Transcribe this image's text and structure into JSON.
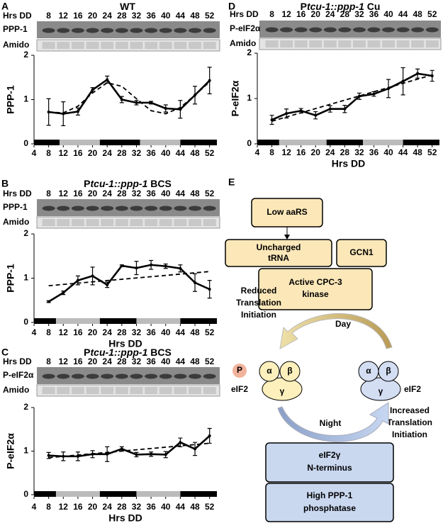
{
  "chart_data": [
    {
      "type": "line",
      "panel": "A",
      "title": [
        {
          "text": "WT",
          "italic": false
        }
      ],
      "lane_header": "Hrs DD",
      "lanes": [
        8,
        12,
        16,
        20,
        24,
        28,
        32,
        36,
        40,
        44,
        48,
        52
      ],
      "blots": [
        "PPP-1",
        "Amido"
      ],
      "ylabel": "PPP-1",
      "xlim": [
        4,
        54
      ],
      "xticks": [
        4,
        8,
        12,
        16,
        20,
        24,
        28,
        32,
        36,
        40,
        44,
        48,
        52
      ],
      "ylim": [
        0,
        2
      ],
      "yticks": [
        0,
        1,
        2
      ],
      "light_dark_bar": [
        {
          "start": 4,
          "end": 11,
          "color": "#000"
        },
        {
          "start": 11,
          "end": 22,
          "color": "#bbb"
        },
        {
          "start": 22,
          "end": 33,
          "color": "#000"
        },
        {
          "start": 33,
          "end": 44,
          "color": "#bbb"
        },
        {
          "start": 44,
          "end": 54,
          "color": "#000"
        }
      ],
      "series": [
        {
          "color": "#000",
          "dash": false,
          "x": [
            8,
            12,
            16,
            20,
            24,
            28,
            32,
            36,
            40,
            44,
            48,
            52
          ],
          "values": [
            0.72,
            0.68,
            0.73,
            1.22,
            1.45,
            1.0,
            0.93,
            0.93,
            0.8,
            0.78,
            1.1,
            1.43
          ],
          "errors": [
            0.3,
            0.27,
            0.08,
            0.05,
            0.08,
            0.07,
            0.05,
            0.03,
            0.08,
            0.2,
            0.2,
            0.3
          ]
        },
        {
          "color": "#000",
          "dash": true,
          "x": [
            8,
            12,
            16,
            20,
            24,
            28,
            32,
            36,
            40,
            44,
            48,
            52
          ],
          "values": [
            0.72,
            0.7,
            0.85,
            1.15,
            1.38,
            1.3,
            1.02,
            0.75,
            0.68,
            0.82,
            1.1,
            1.4
          ]
        }
      ]
    },
    {
      "type": "line",
      "panel": "B",
      "title": [
        {
          "text": "P",
          "italic": false
        },
        {
          "text": "tcu-1::ppp-1",
          "italic": true
        },
        {
          "text": " BCS",
          "italic": false
        }
      ],
      "lane_header": "Hrs DD",
      "lanes": [
        8,
        12,
        16,
        20,
        24,
        28,
        32,
        36,
        40,
        44,
        48,
        52
      ],
      "blots": [
        "PPP-1",
        "Amido"
      ],
      "ylabel": "PPP-1",
      "xlabel": "Hrs DD",
      "xlim": [
        4,
        54
      ],
      "xticks": [
        4,
        8,
        12,
        16,
        20,
        24,
        28,
        32,
        36,
        40,
        44,
        48,
        52
      ],
      "ylim": [
        0,
        2
      ],
      "yticks": [
        0,
        1,
        2
      ],
      "light_dark_bar": [
        {
          "start": 4,
          "end": 10,
          "color": "#000"
        },
        {
          "start": 10,
          "end": 22,
          "color": "#bbb"
        },
        {
          "start": 22,
          "end": 32,
          "color": "#000"
        },
        {
          "start": 32,
          "end": 44,
          "color": "#bbb"
        },
        {
          "start": 44,
          "end": 54,
          "color": "#000"
        }
      ],
      "series": [
        {
          "color": "#000",
          "dash": false,
          "x": [
            8,
            12,
            16,
            20,
            24,
            28,
            32,
            36,
            40,
            44,
            48,
            52
          ],
          "values": [
            0.47,
            0.67,
            0.95,
            1.05,
            0.85,
            1.28,
            1.23,
            1.3,
            1.27,
            1.22,
            0.9,
            0.75
          ],
          "errors": [
            0.02,
            0.04,
            0.1,
            0.2,
            0.06,
            0.02,
            0.15,
            0.1,
            0.05,
            0.08,
            0.2,
            0.2
          ]
        },
        {
          "color": "#000",
          "dash": true,
          "x": [
            8,
            52
          ],
          "values": [
            0.83,
            1.15
          ]
        }
      ]
    },
    {
      "type": "line",
      "panel": "C",
      "title": [
        {
          "text": "P",
          "italic": false
        },
        {
          "text": "tcu-1::ppp-1",
          "italic": true
        },
        {
          "text": " BCS",
          "italic": false
        }
      ],
      "lane_header": "Hrs DD",
      "lanes": [
        8,
        12,
        16,
        20,
        24,
        28,
        32,
        36,
        40,
        44,
        48,
        52
      ],
      "blots": [
        "P-eIF2α",
        "Amido"
      ],
      "ylabel": "P-eIF2α",
      "xlabel": "Hrs DD",
      "xlim": [
        4,
        54
      ],
      "xticks": [
        4,
        8,
        12,
        16,
        20,
        24,
        28,
        32,
        36,
        40,
        44,
        48,
        52
      ],
      "ylim": [
        0,
        2
      ],
      "yticks": [
        0,
        1,
        2
      ],
      "light_dark_bar": [
        {
          "start": 4,
          "end": 10,
          "color": "#000"
        },
        {
          "start": 10,
          "end": 22,
          "color": "#bbb"
        },
        {
          "start": 22,
          "end": 32,
          "color": "#000"
        },
        {
          "start": 32,
          "end": 44,
          "color": "#bbb"
        },
        {
          "start": 44,
          "end": 54,
          "color": "#000"
        }
      ],
      "series": [
        {
          "color": "#000",
          "dash": false,
          "x": [
            8,
            12,
            16,
            20,
            24,
            28,
            32,
            36,
            40,
            44,
            48,
            52
          ],
          "values": [
            0.9,
            0.88,
            0.88,
            0.93,
            0.93,
            1.05,
            0.92,
            0.93,
            0.92,
            1.2,
            1.05,
            1.35
          ],
          "errors": [
            0.07,
            0.1,
            0.1,
            0.08,
            0.17,
            0.05,
            0.05,
            0.05,
            0.07,
            0.1,
            0.15,
            0.17
          ]
        },
        {
          "color": "#000",
          "dash": true,
          "x": [
            8,
            52
          ],
          "values": [
            0.85,
            1.18
          ]
        }
      ]
    },
    {
      "type": "line",
      "panel": "D",
      "title": [
        {
          "text": "P",
          "italic": false
        },
        {
          "text": "tcu-1::ppp-1",
          "italic": true
        },
        {
          "text": " Cu",
          "italic": false
        }
      ],
      "lane_header": "Hrs DD",
      "lanes": [
        8,
        12,
        16,
        20,
        24,
        28,
        32,
        36,
        40,
        44,
        48,
        52
      ],
      "blots": [
        "P-eIF2α",
        "Amido"
      ],
      "ylabel": "P-eIF2α",
      "xlabel": "Hrs DD",
      "xlim": [
        4,
        54
      ],
      "xticks": [
        4,
        8,
        12,
        16,
        20,
        24,
        28,
        32,
        36,
        40,
        44,
        48,
        52
      ],
      "ylim": [
        0,
        2
      ],
      "yticks": [
        0,
        1,
        2
      ],
      "light_dark_bar": [
        {
          "start": 4,
          "end": 10,
          "color": "#000"
        },
        {
          "start": 10,
          "end": 23,
          "color": "#bbb"
        },
        {
          "start": 23,
          "end": 33,
          "color": "#000"
        },
        {
          "start": 33,
          "end": 44,
          "color": "#bbb"
        },
        {
          "start": 44,
          "end": 54,
          "color": "#000"
        }
      ],
      "series": [
        {
          "color": "#000",
          "dash": false,
          "x": [
            8,
            12,
            16,
            20,
            24,
            28,
            32,
            36,
            40,
            44,
            48,
            52
          ],
          "values": [
            0.53,
            0.67,
            0.73,
            0.63,
            0.77,
            0.77,
            1.05,
            1.1,
            1.22,
            1.38,
            1.55,
            1.5
          ],
          "errors": [
            0.1,
            0.1,
            0.05,
            0.08,
            0.07,
            0.08,
            0.07,
            0.05,
            0.2,
            0.3,
            0.1,
            0.12
          ]
        },
        {
          "color": "#000",
          "dash": true,
          "x": [
            8,
            52
          ],
          "values": [
            0.5,
            1.52
          ]
        }
      ]
    }
  ],
  "diagram": {
    "panel": "E",
    "low": "Low aaRS",
    "trna": [
      "Uncharged",
      "tRNA"
    ],
    "gcn1": "GCN1",
    "kinase": [
      "Active CPC-3",
      "kinase"
    ],
    "reduced": [
      "Reduced",
      "Translation",
      "Initiation"
    ],
    "day": "Day",
    "night": "Night",
    "phospho": "P",
    "alpha": "α",
    "beta": "β",
    "gamma": "γ",
    "eif2": "eIF2",
    "increased": [
      "Increased",
      "Translation",
      "Initiation"
    ],
    "nterm": [
      "eIF2γ",
      "N-terminus"
    ],
    "ppp1": [
      "High PPP-1",
      "phosphatase"
    ]
  }
}
